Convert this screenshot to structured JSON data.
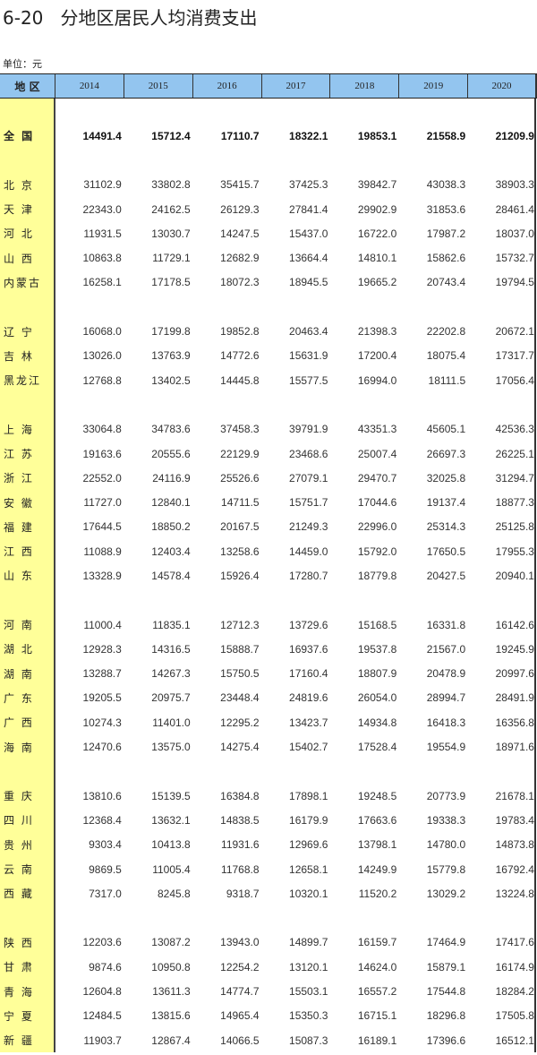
{
  "title": "6-20   分地区居民人均消费支出",
  "unit": "单位：元",
  "header": {
    "region": "地 区",
    "years": [
      "2014",
      "2015",
      "2016",
      "2017",
      "2018",
      "2019",
      "2020"
    ]
  },
  "national": {
    "region": "全 国",
    "values": [
      "14491.4",
      "15712.4",
      "17110.7",
      "18322.1",
      "19853.1",
      "21558.9",
      "21209.9"
    ]
  },
  "groups": [
    [
      {
        "region": "北 京",
        "values": [
          "31102.9",
          "33802.8",
          "35415.7",
          "37425.3",
          "39842.7",
          "43038.3",
          "38903.3"
        ]
      },
      {
        "region": "天 津",
        "values": [
          "22343.0",
          "24162.5",
          "26129.3",
          "27841.4",
          "29902.9",
          "31853.6",
          "28461.4"
        ]
      },
      {
        "region": "河 北",
        "values": [
          "11931.5",
          "13030.7",
          "14247.5",
          "15437.0",
          "16722.0",
          "17987.2",
          "18037.0"
        ]
      },
      {
        "region": "山 西",
        "values": [
          "10863.8",
          "11729.1",
          "12682.9",
          "13664.4",
          "14810.1",
          "15862.6",
          "15732.7"
        ]
      },
      {
        "region": "内蒙古",
        "values": [
          "16258.1",
          "17178.5",
          "18072.3",
          "18945.5",
          "19665.2",
          "20743.4",
          "19794.5"
        ]
      }
    ],
    [
      {
        "region": "辽 宁",
        "values": [
          "16068.0",
          "17199.8",
          "19852.8",
          "20463.4",
          "21398.3",
          "22202.8",
          "20672.1"
        ]
      },
      {
        "region": "吉 林",
        "values": [
          "13026.0",
          "13763.9",
          "14772.6",
          "15631.9",
          "17200.4",
          "18075.4",
          "17317.7"
        ]
      },
      {
        "region": "黑龙江",
        "values": [
          "12768.8",
          "13402.5",
          "14445.8",
          "15577.5",
          "16994.0",
          "18111.5",
          "17056.4"
        ]
      }
    ],
    [
      {
        "region": "上 海",
        "values": [
          "33064.8",
          "34783.6",
          "37458.3",
          "39791.9",
          "43351.3",
          "45605.1",
          "42536.3"
        ]
      },
      {
        "region": "江 苏",
        "values": [
          "19163.6",
          "20555.6",
          "22129.9",
          "23468.6",
          "25007.4",
          "26697.3",
          "26225.1"
        ]
      },
      {
        "region": "浙 江",
        "values": [
          "22552.0",
          "24116.9",
          "25526.6",
          "27079.1",
          "29470.7",
          "32025.8",
          "31294.7"
        ]
      },
      {
        "region": "安 徽",
        "values": [
          "11727.0",
          "12840.1",
          "14711.5",
          "15751.7",
          "17044.6",
          "19137.4",
          "18877.3"
        ]
      },
      {
        "region": "福 建",
        "values": [
          "17644.5",
          "18850.2",
          "20167.5",
          "21249.3",
          "22996.0",
          "25314.3",
          "25125.8"
        ]
      },
      {
        "region": "江 西",
        "values": [
          "11088.9",
          "12403.4",
          "13258.6",
          "14459.0",
          "15792.0",
          "17650.5",
          "17955.3"
        ]
      },
      {
        "region": "山 东",
        "values": [
          "13328.9",
          "14578.4",
          "15926.4",
          "17280.7",
          "18779.8",
          "20427.5",
          "20940.1"
        ]
      }
    ],
    [
      {
        "region": "河 南",
        "values": [
          "11000.4",
          "11835.1",
          "12712.3",
          "13729.6",
          "15168.5",
          "16331.8",
          "16142.6"
        ]
      },
      {
        "region": "湖 北",
        "values": [
          "12928.3",
          "14316.5",
          "15888.7",
          "16937.6",
          "19537.8",
          "21567.0",
          "19245.9"
        ]
      },
      {
        "region": "湖 南",
        "values": [
          "13288.7",
          "14267.3",
          "15750.5",
          "17160.4",
          "18807.9",
          "20478.9",
          "20997.6"
        ]
      },
      {
        "region": "广 东",
        "values": [
          "19205.5",
          "20975.7",
          "23448.4",
          "24819.6",
          "26054.0",
          "28994.7",
          "28491.9"
        ]
      },
      {
        "region": "广 西",
        "values": [
          "10274.3",
          "11401.0",
          "12295.2",
          "13423.7",
          "14934.8",
          "16418.3",
          "16356.8"
        ]
      },
      {
        "region": "海 南",
        "values": [
          "12470.6",
          "13575.0",
          "14275.4",
          "15402.7",
          "17528.4",
          "19554.9",
          "18971.6"
        ]
      }
    ],
    [
      {
        "region": "重 庆",
        "values": [
          "13810.6",
          "15139.5",
          "16384.8",
          "17898.1",
          "19248.5",
          "20773.9",
          "21678.1"
        ]
      },
      {
        "region": "四 川",
        "values": [
          "12368.4",
          "13632.1",
          "14838.5",
          "16179.9",
          "17663.6",
          "19338.3",
          "19783.4"
        ]
      },
      {
        "region": "贵 州",
        "values": [
          "9303.4",
          "10413.8",
          "11931.6",
          "12969.6",
          "13798.1",
          "14780.0",
          "14873.8"
        ]
      },
      {
        "region": "云 南",
        "values": [
          "9869.5",
          "11005.4",
          "11768.8",
          "12658.1",
          "14249.9",
          "15779.8",
          "16792.4"
        ]
      },
      {
        "region": "西 藏",
        "values": [
          "7317.0",
          "8245.8",
          "9318.7",
          "10320.1",
          "11520.2",
          "13029.2",
          "13224.8"
        ]
      }
    ],
    [
      {
        "region": "陕 西",
        "values": [
          "12203.6",
          "13087.2",
          "13943.0",
          "14899.7",
          "16159.7",
          "17464.9",
          "17417.6"
        ]
      },
      {
        "region": "甘 肃",
        "values": [
          "9874.6",
          "10950.8",
          "12254.2",
          "13120.1",
          "14624.0",
          "15879.1",
          "16174.9"
        ]
      },
      {
        "region": "青 海",
        "values": [
          "12604.8",
          "13611.3",
          "14774.7",
          "15503.1",
          "16557.2",
          "17544.8",
          "18284.2"
        ]
      },
      {
        "region": "宁 夏",
        "values": [
          "12484.5",
          "13815.6",
          "14965.4",
          "15350.3",
          "16715.1",
          "18296.8",
          "17505.8"
        ]
      },
      {
        "region": "新 疆",
        "values": [
          "11903.7",
          "12867.4",
          "14066.5",
          "15087.3",
          "16189.1",
          "17396.6",
          "16512.1"
        ]
      }
    ]
  ]
}
